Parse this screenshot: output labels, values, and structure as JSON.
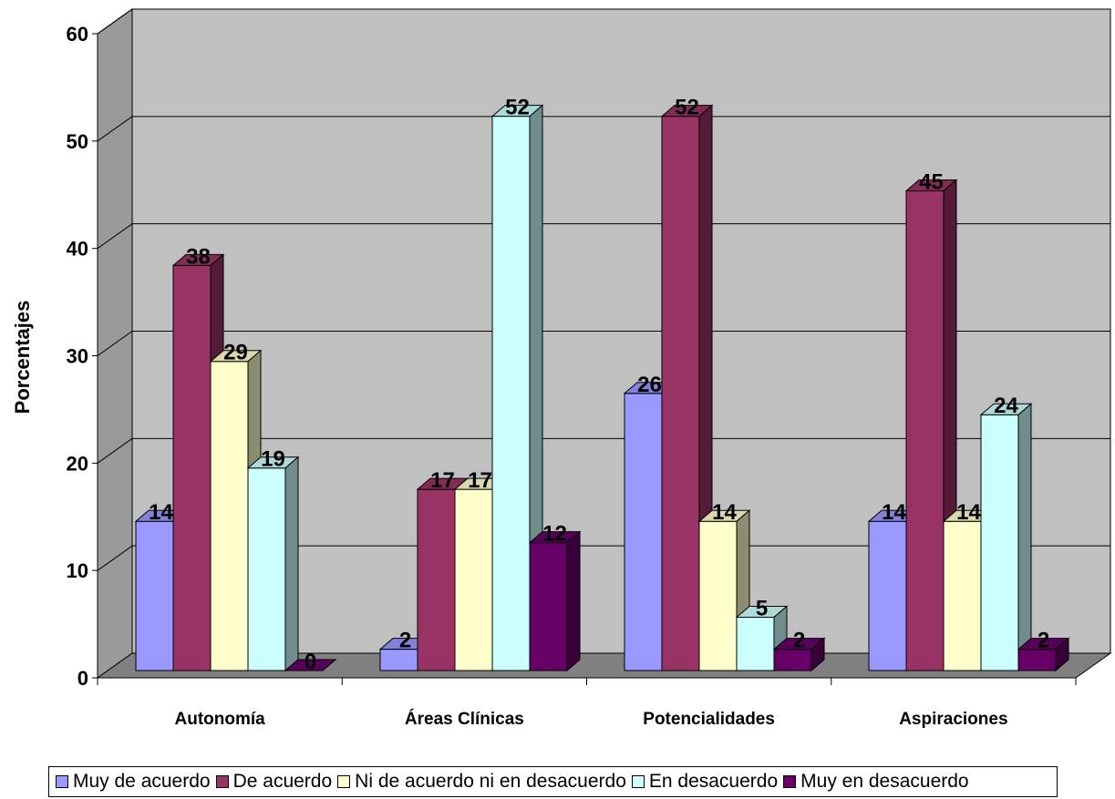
{
  "chart_data": {
    "type": "bar",
    "title": "",
    "xlabel": "",
    "ylabel": "Porcentajes",
    "ylim": [
      0,
      60
    ],
    "yticks": [
      0,
      10,
      20,
      30,
      40,
      50,
      60
    ],
    "grid": true,
    "legend_position": "bottom",
    "categories": [
      "Autonomía",
      "Áreas Clínicas",
      "Potencialidades",
      "Aspiraciones"
    ],
    "series": [
      {
        "name": "Muy de acuerdo",
        "color": "#9999ff",
        "values": [
          14,
          2,
          26,
          14
        ]
      },
      {
        "name": "De acuerdo",
        "color": "#993366",
        "values": [
          38,
          17,
          52,
          45
        ]
      },
      {
        "name": "Ni de acuerdo ni en desacuerdo",
        "color": "#ffffcc",
        "values": [
          29,
          17,
          14,
          14
        ]
      },
      {
        "name": "En desacuerdo",
        "color": "#ccffff",
        "values": [
          19,
          52,
          5,
          24
        ]
      },
      {
        "name": "Muy en desacuerdo",
        "color": "#660066",
        "values": [
          0,
          12,
          2,
          2
        ]
      }
    ],
    "data_labels": [
      [
        "14",
        "2",
        "26",
        "14"
      ],
      [
        "38",
        "17",
        "52",
        "45"
      ],
      [
        "29",
        "17",
        "14",
        "14"
      ],
      [
        "19",
        "52",
        "5",
        "24"
      ],
      [
        "0",
        "12",
        "2",
        "2"
      ]
    ],
    "colors": {
      "wall": "#c0c0c0",
      "floor": "#808080",
      "wall_shadow": "#9a9a9a",
      "grid": "#000000"
    }
  }
}
